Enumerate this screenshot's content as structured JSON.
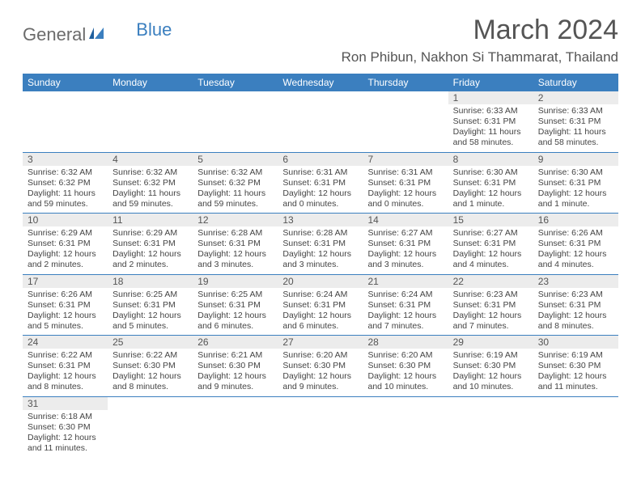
{
  "logo": {
    "general": "General",
    "blue": "Blue"
  },
  "title": "March 2024",
  "location": "Ron Phibun, Nakhon Si Thammarat, Thailand",
  "colors": {
    "header_bg": "#3b7fbf",
    "header_text": "#ffffff",
    "daynum_bg": "#ececec",
    "text": "#444444",
    "title_text": "#555555",
    "rule": "#3b7fbf"
  },
  "dayNames": [
    "Sunday",
    "Monday",
    "Tuesday",
    "Wednesday",
    "Thursday",
    "Friday",
    "Saturday"
  ],
  "weeks": [
    [
      null,
      null,
      null,
      null,
      null,
      {
        "n": "1",
        "sr": "6:33 AM",
        "ss": "6:31 PM",
        "dl": "11 hours and 58 minutes."
      },
      {
        "n": "2",
        "sr": "6:33 AM",
        "ss": "6:31 PM",
        "dl": "11 hours and 58 minutes."
      }
    ],
    [
      {
        "n": "3",
        "sr": "6:32 AM",
        "ss": "6:32 PM",
        "dl": "11 hours and 59 minutes."
      },
      {
        "n": "4",
        "sr": "6:32 AM",
        "ss": "6:32 PM",
        "dl": "11 hours and 59 minutes."
      },
      {
        "n": "5",
        "sr": "6:32 AM",
        "ss": "6:32 PM",
        "dl": "11 hours and 59 minutes."
      },
      {
        "n": "6",
        "sr": "6:31 AM",
        "ss": "6:31 PM",
        "dl": "12 hours and 0 minutes."
      },
      {
        "n": "7",
        "sr": "6:31 AM",
        "ss": "6:31 PM",
        "dl": "12 hours and 0 minutes."
      },
      {
        "n": "8",
        "sr": "6:30 AM",
        "ss": "6:31 PM",
        "dl": "12 hours and 1 minute."
      },
      {
        "n": "9",
        "sr": "6:30 AM",
        "ss": "6:31 PM",
        "dl": "12 hours and 1 minute."
      }
    ],
    [
      {
        "n": "10",
        "sr": "6:29 AM",
        "ss": "6:31 PM",
        "dl": "12 hours and 2 minutes."
      },
      {
        "n": "11",
        "sr": "6:29 AM",
        "ss": "6:31 PM",
        "dl": "12 hours and 2 minutes."
      },
      {
        "n": "12",
        "sr": "6:28 AM",
        "ss": "6:31 PM",
        "dl": "12 hours and 3 minutes."
      },
      {
        "n": "13",
        "sr": "6:28 AM",
        "ss": "6:31 PM",
        "dl": "12 hours and 3 minutes."
      },
      {
        "n": "14",
        "sr": "6:27 AM",
        "ss": "6:31 PM",
        "dl": "12 hours and 3 minutes."
      },
      {
        "n": "15",
        "sr": "6:27 AM",
        "ss": "6:31 PM",
        "dl": "12 hours and 4 minutes."
      },
      {
        "n": "16",
        "sr": "6:26 AM",
        "ss": "6:31 PM",
        "dl": "12 hours and 4 minutes."
      }
    ],
    [
      {
        "n": "17",
        "sr": "6:26 AM",
        "ss": "6:31 PM",
        "dl": "12 hours and 5 minutes."
      },
      {
        "n": "18",
        "sr": "6:25 AM",
        "ss": "6:31 PM",
        "dl": "12 hours and 5 minutes."
      },
      {
        "n": "19",
        "sr": "6:25 AM",
        "ss": "6:31 PM",
        "dl": "12 hours and 6 minutes."
      },
      {
        "n": "20",
        "sr": "6:24 AM",
        "ss": "6:31 PM",
        "dl": "12 hours and 6 minutes."
      },
      {
        "n": "21",
        "sr": "6:24 AM",
        "ss": "6:31 PM",
        "dl": "12 hours and 7 minutes."
      },
      {
        "n": "22",
        "sr": "6:23 AM",
        "ss": "6:31 PM",
        "dl": "12 hours and 7 minutes."
      },
      {
        "n": "23",
        "sr": "6:23 AM",
        "ss": "6:31 PM",
        "dl": "12 hours and 8 minutes."
      }
    ],
    [
      {
        "n": "24",
        "sr": "6:22 AM",
        "ss": "6:31 PM",
        "dl": "12 hours and 8 minutes."
      },
      {
        "n": "25",
        "sr": "6:22 AM",
        "ss": "6:30 PM",
        "dl": "12 hours and 8 minutes."
      },
      {
        "n": "26",
        "sr": "6:21 AM",
        "ss": "6:30 PM",
        "dl": "12 hours and 9 minutes."
      },
      {
        "n": "27",
        "sr": "6:20 AM",
        "ss": "6:30 PM",
        "dl": "12 hours and 9 minutes."
      },
      {
        "n": "28",
        "sr": "6:20 AM",
        "ss": "6:30 PM",
        "dl": "12 hours and 10 minutes."
      },
      {
        "n": "29",
        "sr": "6:19 AM",
        "ss": "6:30 PM",
        "dl": "12 hours and 10 minutes."
      },
      {
        "n": "30",
        "sr": "6:19 AM",
        "ss": "6:30 PM",
        "dl": "12 hours and 11 minutes."
      }
    ],
    [
      {
        "n": "31",
        "sr": "6:18 AM",
        "ss": "6:30 PM",
        "dl": "12 hours and 11 minutes."
      },
      null,
      null,
      null,
      null,
      null,
      null
    ]
  ],
  "labels": {
    "sunrise": "Sunrise:",
    "sunset": "Sunset:",
    "daylight": "Daylight:"
  }
}
